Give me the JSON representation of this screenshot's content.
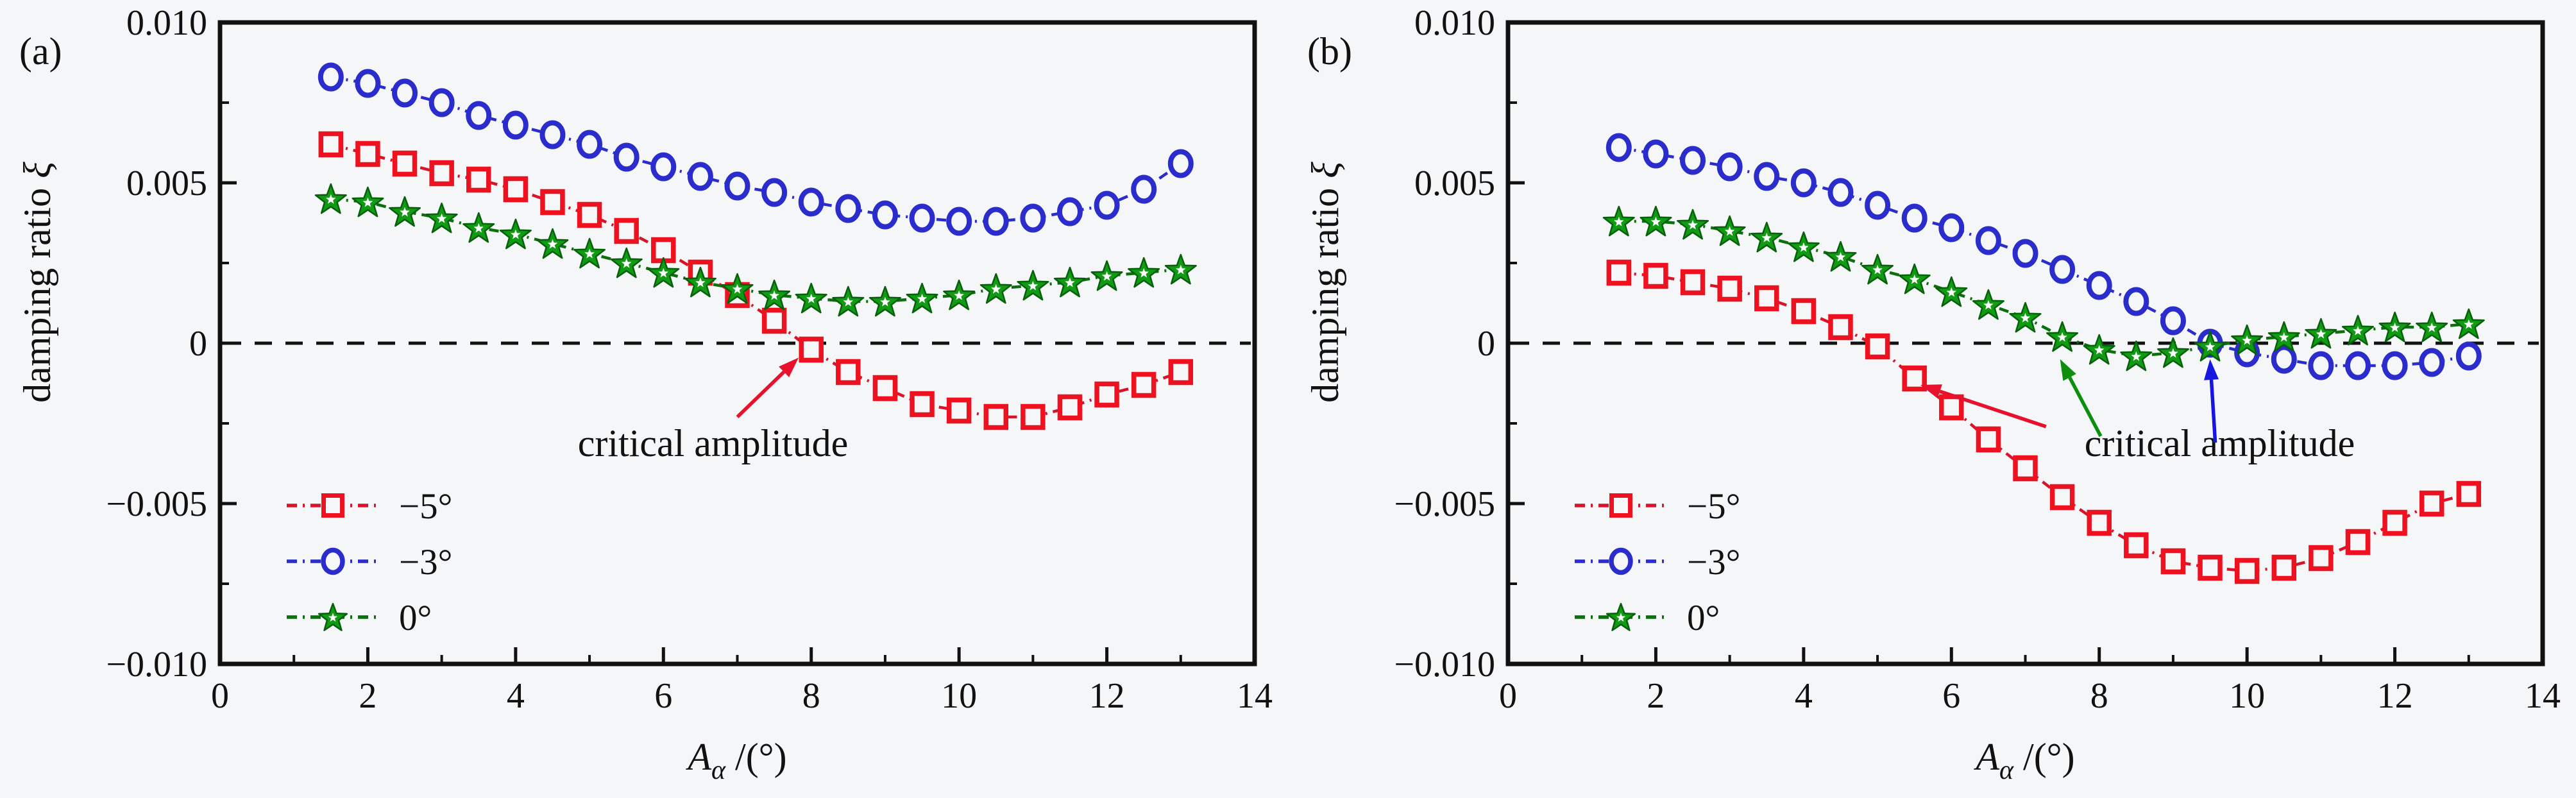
{
  "figure": {
    "background": "#f5f6f8",
    "frame_color": "#111111",
    "zero_line": {
      "style": "dashed",
      "color": "#111111"
    }
  },
  "chart_data": [
    {
      "type": "line",
      "panel_label": "(a)",
      "title": "",
      "xlabel": {
        "variable": "A",
        "subscript": "α",
        "rest": "/(°)"
      },
      "ylabel": {
        "text": "damping ratio ",
        "symbol": "ξ"
      },
      "xlim": [
        0,
        14
      ],
      "ylim": [
        -0.01,
        0.01
      ],
      "x_major_ticks": [
        0,
        2,
        4,
        6,
        8,
        10,
        12,
        14
      ],
      "x_major_labels": [
        "0",
        "2",
        "4",
        "6",
        "8",
        "10",
        "12",
        "14"
      ],
      "x_minor_ticks": [
        1,
        3,
        5,
        7,
        9,
        11,
        13
      ],
      "y_major_ticks": [
        0.01,
        0.005,
        0,
        -0.005,
        -0.01
      ],
      "y_major_labels": [
        "0.010",
        "0.005",
        "0",
        "−0.005",
        "−0.010"
      ],
      "y_minor_ticks": [
        0.0075,
        0.0025,
        -0.0025,
        -0.0075
      ],
      "grid": false,
      "legend_position": "lower-left",
      "x": [
        1.5,
        2,
        2.5,
        3,
        3.5,
        4,
        4.5,
        5,
        5.5,
        6,
        6.5,
        7,
        7.5,
        8,
        8.5,
        9,
        9.5,
        10,
        10.5,
        11,
        11.5,
        12,
        12.5,
        13
      ],
      "series": [
        {
          "name": "−5°",
          "marker": "square",
          "color": "#ee1220",
          "line_color": "#d8142a",
          "values": [
            0.0062,
            0.0059,
            0.0056,
            0.0053,
            0.0051,
            0.0048,
            0.0044,
            0.004,
            0.0035,
            0.0029,
            0.0022,
            0.0015,
            0.0007,
            -0.0002,
            -0.0009,
            -0.0014,
            -0.0019,
            -0.0021,
            -0.0023,
            -0.0023,
            -0.002,
            -0.0016,
            -0.0013,
            -0.0009
          ]
        },
        {
          "name": "−3°",
          "marker": "circle",
          "color": "#2a2ccb",
          "line_color": "#2a2ccb",
          "values": [
            0.0083,
            0.0081,
            0.0078,
            0.0075,
            0.0071,
            0.0068,
            0.0065,
            0.0062,
            0.0058,
            0.0055,
            0.0052,
            0.0049,
            0.0047,
            0.0044,
            0.0042,
            0.004,
            0.0039,
            0.0038,
            0.0038,
            0.0039,
            0.0041,
            0.0043,
            0.0048,
            0.0056
          ]
        },
        {
          "name": "0°",
          "marker": "star",
          "color": "#119a14",
          "line_color": "#0b6f0d",
          "values": [
            0.0045,
            0.0044,
            0.0041,
            0.0039,
            0.0036,
            0.0034,
            0.0031,
            0.0028,
            0.0025,
            0.0022,
            0.0019,
            0.0017,
            0.0015,
            0.0014,
            0.0013,
            0.0013,
            0.0014,
            0.0015,
            0.0017,
            0.0018,
            0.0019,
            0.0021,
            0.0022,
            0.0023
          ]
        }
      ],
      "annotation": {
        "text": "critical amplitude",
        "x": 6.67,
        "y": -0.0031,
        "arrows": [
          {
            "color": "#e8112d",
            "from": [
              7.0,
              -0.0023
            ],
            "to": [
              7.83,
              -0.00045
            ],
            "critical_x": 7.8
          }
        ]
      }
    },
    {
      "type": "line",
      "panel_label": "(b)",
      "title": "",
      "xlabel": {
        "variable": "A",
        "subscript": "α",
        "rest": "/(°)"
      },
      "ylabel": {
        "text": "damping ratio ",
        "symbol": "ξ"
      },
      "xlim": [
        0,
        14
      ],
      "ylim": [
        -0.01,
        0.01
      ],
      "x_major_ticks": [
        0,
        2,
        4,
        6,
        8,
        10,
        12,
        14
      ],
      "x_major_labels": [
        "0",
        "2",
        "4",
        "6",
        "8",
        "10",
        "12",
        "14"
      ],
      "x_minor_ticks": [
        1,
        3,
        5,
        7,
        9,
        11,
        13
      ],
      "y_major_ticks": [
        0.01,
        0.005,
        0,
        -0.005,
        -0.01
      ],
      "y_major_labels": [
        "0.010",
        "0.005",
        "0",
        "−0.005",
        "−0.010"
      ],
      "y_minor_ticks": [
        0.0075,
        0.0025,
        -0.0025,
        -0.0075
      ],
      "grid": false,
      "legend_position": "lower-left",
      "x": [
        1.5,
        2,
        2.5,
        3,
        3.5,
        4,
        4.5,
        5,
        5.5,
        6,
        6.5,
        7,
        7.5,
        8,
        8.5,
        9,
        9.5,
        10,
        10.5,
        11,
        11.5,
        12,
        12.5,
        13
      ],
      "series": [
        {
          "name": "−5°",
          "marker": "square",
          "color": "#ee1220",
          "line_color": "#d8142a",
          "values": [
            0.0022,
            0.0021,
            0.0019,
            0.0017,
            0.0014,
            0.001,
            0.0005,
            -0.0001,
            -0.0011,
            -0.002,
            -0.003,
            -0.0039,
            -0.0048,
            -0.0056,
            -0.0063,
            -0.0068,
            -0.007,
            -0.0071,
            -0.007,
            -0.0067,
            -0.0062,
            -0.0056,
            -0.005,
            -0.0047
          ]
        },
        {
          "name": "−3°",
          "marker": "circle",
          "color": "#2a2ccb",
          "line_color": "#2a2ccb",
          "values": [
            0.0061,
            0.0059,
            0.0057,
            0.0055,
            0.0052,
            0.005,
            0.0047,
            0.0043,
            0.0039,
            0.0036,
            0.0032,
            0.0028,
            0.0023,
            0.0018,
            0.0013,
            0.0007,
            0.0,
            -0.0003,
            -0.0005,
            -0.0007,
            -0.0007,
            -0.0007,
            -0.0006,
            -0.0004
          ]
        },
        {
          "name": "0°",
          "marker": "star",
          "color": "#119a14",
          "line_color": "#0b6f0d",
          "values": [
            0.0038,
            0.0038,
            0.0037,
            0.0035,
            0.0033,
            0.003,
            0.0027,
            0.0023,
            0.002,
            0.0016,
            0.0012,
            0.0008,
            0.0002,
            -0.0002,
            -0.0004,
            -0.0003,
            -0.0001,
            0.0001,
            0.0002,
            0.0003,
            0.0004,
            0.0005,
            0.0005,
            0.0006
          ]
        }
      ],
      "annotation": {
        "text": "critical amplitude",
        "x": 9.63,
        "y": -0.0031,
        "arrows": [
          {
            "color": "#e8112d",
            "from": [
              7.28,
              -0.0026
            ],
            "to": [
              5.58,
              -0.0013
            ],
            "critical_x": 4.9
          },
          {
            "color": "#0b8f0d",
            "from": [
              8.02,
              -0.0029
            ],
            "to": [
              7.47,
              -0.0005
            ],
            "critical_x": 7.6
          },
          {
            "color": "#1616e0",
            "from": [
              9.57,
              -0.0031
            ],
            "to": [
              9.5,
              -0.0005
            ],
            "critical_x": 9.5
          }
        ]
      }
    }
  ],
  "legend": {
    "entries": [
      {
        "label": "−5°",
        "series": 0
      },
      {
        "label": "−3°",
        "series": 1
      },
      {
        "label": "0°",
        "series": 2
      }
    ]
  }
}
